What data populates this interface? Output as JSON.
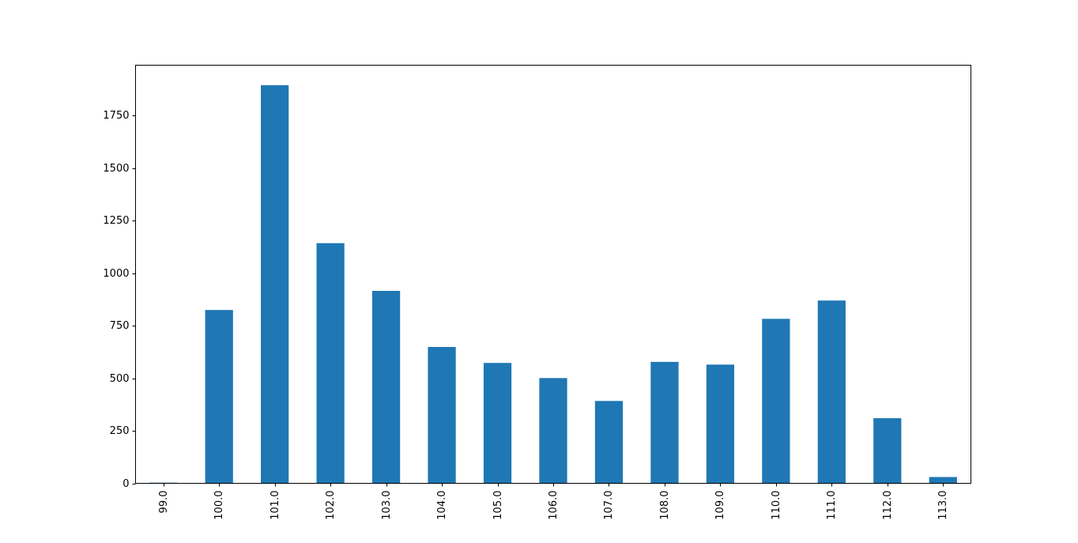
{
  "colors": {
    "bar": "#1f77b4",
    "axis": "#000000",
    "background": "#ffffff"
  },
  "chart_data": {
    "type": "bar",
    "title": "",
    "xlabel": "",
    "ylabel": "",
    "categories": [
      "99.0",
      "100.0",
      "101.0",
      "102.0",
      "103.0",
      "104.0",
      "105.0",
      "106.0",
      "107.0",
      "108.0",
      "109.0",
      "110.0",
      "111.0",
      "112.0",
      "113.0"
    ],
    "values": [
      3,
      825,
      1895,
      1143,
      916,
      649,
      573,
      501,
      392,
      578,
      565,
      783,
      870,
      310,
      30
    ],
    "ylim": [
      0,
      1990
    ],
    "yticks": [
      0,
      250,
      500,
      750,
      1000,
      1250,
      1500,
      1750
    ],
    "grid": false,
    "legend": "none"
  }
}
